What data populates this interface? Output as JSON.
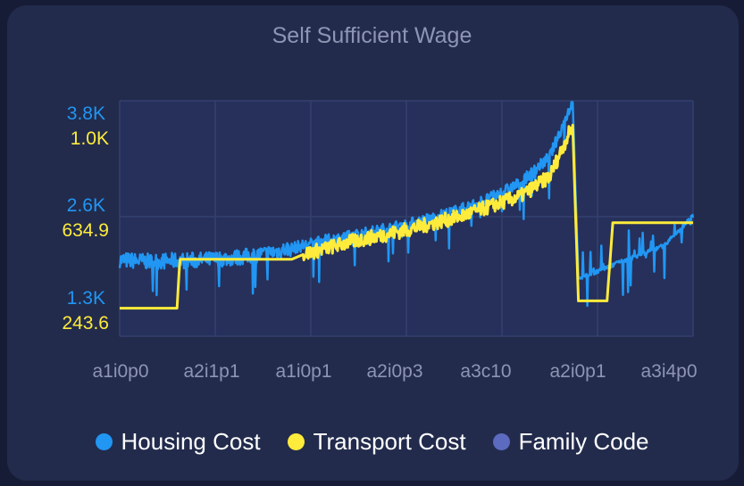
{
  "chart_data": {
    "type": "line",
    "title": "Self Sufficient Wage",
    "x_ticks": [
      "a1i0p0",
      "a2i1p1",
      "a1i0p1",
      "a2i0p3",
      "a3c10",
      "a2i0p1",
      "a3i4p0"
    ],
    "y_left_ticks": [
      "3.8K",
      "2.6K",
      "1.3K"
    ],
    "y_right_ticks": [
      "1.0K",
      "634.9",
      "243.6"
    ],
    "y_left_range": [
      1300,
      3800
    ],
    "y_right_range": [
      243.6,
      1000
    ],
    "grid": true,
    "legend_position": "bottom",
    "series": [
      {
        "name": "Housing Cost",
        "color": "#2196f3",
        "approx_profile": [
          [
            0,
            1800
          ],
          [
            0.05,
            1780
          ],
          [
            0.1,
            1790
          ],
          [
            0.15,
            1800
          ],
          [
            0.2,
            1830
          ],
          [
            0.25,
            1880
          ],
          [
            0.3,
            1960
          ],
          [
            0.35,
            2050
          ],
          [
            0.4,
            2120
          ],
          [
            0.45,
            2200
          ],
          [
            0.5,
            2280
          ],
          [
            0.55,
            2380
          ],
          [
            0.6,
            2500
          ],
          [
            0.65,
            2650
          ],
          [
            0.7,
            2850
          ],
          [
            0.75,
            3200
          ],
          [
            0.79,
            3950
          ],
          [
            0.8,
            1550
          ],
          [
            0.85,
            1700
          ],
          [
            0.9,
            1850
          ],
          [
            0.95,
            2000
          ],
          [
            1.0,
            2400
          ]
        ]
      },
      {
        "name": "Transport Cost",
        "color": "#ffeb3b",
        "approx_profile": [
          [
            0,
            300
          ],
          [
            0.1,
            300
          ],
          [
            0.105,
            500
          ],
          [
            0.3,
            500
          ],
          [
            0.32,
            520
          ],
          [
            0.4,
            570
          ],
          [
            0.5,
            620
          ],
          [
            0.6,
            680
          ],
          [
            0.7,
            760
          ],
          [
            0.75,
            840
          ],
          [
            0.79,
            1050
          ],
          [
            0.8,
            330
          ],
          [
            0.85,
            330
          ],
          [
            0.86,
            650
          ],
          [
            1.0,
            650
          ]
        ]
      },
      {
        "name": "Family Code",
        "color": "#5c6bc0",
        "approx_profile": []
      }
    ]
  }
}
